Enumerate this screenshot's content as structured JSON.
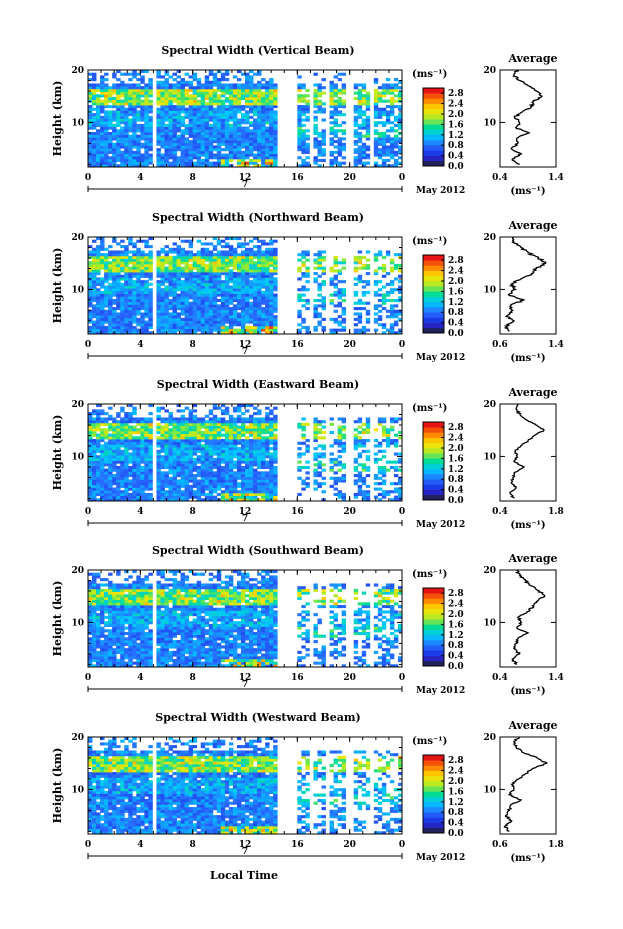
{
  "figure": {
    "xlabel": "Local Time",
    "date_label": "May 2012",
    "day_label": "7"
  },
  "chart_data": [
    {
      "type": "heatmap",
      "title": "Spectral Width (Vertical Beam)",
      "ylabel": "Height (km)",
      "x_ticks": [
        "0",
        "4",
        "8",
        "12",
        "16",
        "20",
        "0"
      ],
      "xlim": [
        0,
        24
      ],
      "y_ticks": [
        "10",
        "20"
      ],
      "ylim": [
        1.5,
        20
      ],
      "colorbar": {
        "unit": "(ms⁻¹)",
        "ticks": [
          "2.8",
          "2.4",
          "2.0",
          "1.6",
          "1.2",
          "0.8",
          "0.4",
          "0.0"
        ],
        "range": [
          0,
          3.0
        ]
      },
      "profile": {
        "title": "Average",
        "xlabel": "(ms⁻¹)",
        "x_ticks": [
          "0.4",
          "1.4"
        ],
        "xlim": [
          0.4,
          1.4
        ],
        "heights": [
          2,
          3,
          4,
          5,
          6,
          7,
          8,
          9,
          10,
          11,
          12,
          13,
          14,
          15,
          16,
          17,
          18,
          19,
          20
        ],
        "values": [
          0.75,
          0.62,
          0.78,
          0.6,
          0.72,
          0.7,
          0.92,
          0.68,
          0.75,
          0.66,
          0.8,
          0.95,
          1.0,
          1.15,
          1.05,
          0.9,
          0.75,
          0.65,
          0.7
        ]
      }
    },
    {
      "type": "heatmap",
      "title": "Spectral Width (Northward Beam)",
      "ylabel": "Height (km)",
      "x_ticks": [
        "0",
        "4",
        "8",
        "12",
        "16",
        "20",
        "0"
      ],
      "xlim": [
        0,
        24
      ],
      "y_ticks": [
        "10",
        "20"
      ],
      "ylim": [
        1.5,
        20
      ],
      "colorbar": {
        "unit": "(ms⁻¹)",
        "ticks": [
          "2.8",
          "2.4",
          "2.0",
          "1.6",
          "1.2",
          "0.8",
          "0.4",
          "0.0"
        ],
        "range": [
          0,
          3.0
        ]
      },
      "profile": {
        "title": "Average",
        "xlabel": "(ms⁻¹)",
        "x_ticks": [
          "0.6",
          "1.4"
        ],
        "xlim": [
          0.6,
          1.4
        ],
        "heights": [
          2,
          3,
          4,
          5,
          6,
          7,
          8,
          9,
          10,
          11,
          12,
          13,
          14,
          15,
          16,
          17,
          18,
          19,
          20
        ],
        "values": [
          0.72,
          0.68,
          0.8,
          0.7,
          0.78,
          0.75,
          0.95,
          0.72,
          0.82,
          0.76,
          0.9,
          1.05,
          1.12,
          1.25,
          1.15,
          1.0,
          0.9,
          0.78,
          0.8
        ]
      }
    },
    {
      "type": "heatmap",
      "title": "Spectral Width (Eastward Beam)",
      "ylabel": "Height (km)",
      "x_ticks": [
        "0",
        "4",
        "8",
        "12",
        "16",
        "20",
        "0"
      ],
      "xlim": [
        0,
        24
      ],
      "y_ticks": [
        "10",
        "20"
      ],
      "ylim": [
        1.5,
        20
      ],
      "colorbar": {
        "unit": "(ms⁻¹)",
        "ticks": [
          "2.8",
          "2.4",
          "2.0",
          "1.6",
          "1.2",
          "0.8",
          "0.4",
          "0.0"
        ],
        "range": [
          0,
          3.0
        ]
      },
      "profile": {
        "title": "Average",
        "xlabel": "(ms⁻¹)",
        "x_ticks": [
          "0.4",
          "1.8"
        ],
        "xlim": [
          0.4,
          1.8
        ],
        "heights": [
          2,
          3,
          4,
          5,
          6,
          7,
          8,
          9,
          10,
          11,
          12,
          13,
          14,
          15,
          16,
          17,
          18,
          19,
          20
        ],
        "values": [
          0.75,
          0.65,
          0.8,
          0.68,
          0.72,
          0.78,
          1.0,
          0.75,
          0.82,
          0.78,
          0.92,
          1.1,
          1.25,
          1.5,
          1.3,
          1.05,
          0.9,
          0.8,
          0.85
        ]
      }
    },
    {
      "type": "heatmap",
      "title": "Spectral Width (Southward Beam)",
      "ylabel": "Height (km)",
      "x_ticks": [
        "0",
        "4",
        "8",
        "12",
        "16",
        "20",
        "0"
      ],
      "xlim": [
        0,
        24
      ],
      "y_ticks": [
        "10",
        "20"
      ],
      "ylim": [
        1.5,
        20
      ],
      "colorbar": {
        "unit": "(ms⁻¹)",
        "ticks": [
          "2.8",
          "2.4",
          "2.0",
          "1.6",
          "1.2",
          "0.8",
          "0.4",
          "0.0"
        ],
        "range": [
          0,
          3.0
        ]
      },
      "profile": {
        "title": "Average",
        "xlabel": "(ms⁻¹)",
        "x_ticks": [
          "0.4",
          "1.4"
        ],
        "xlim": [
          0.4,
          1.4
        ],
        "heights": [
          2,
          3,
          4,
          5,
          6,
          7,
          8,
          9,
          10,
          11,
          12,
          13,
          14,
          15,
          16,
          17,
          18,
          19,
          20
        ],
        "values": [
          0.7,
          0.62,
          0.75,
          0.65,
          0.7,
          0.72,
          0.9,
          0.7,
          0.78,
          0.72,
          0.88,
          1.0,
          1.05,
          1.2,
          1.1,
          0.95,
          0.85,
          0.75,
          0.7
        ]
      }
    },
    {
      "type": "heatmap",
      "title": "Spectral Width (Westward Beam)",
      "ylabel": "Height (km)",
      "x_ticks": [
        "0",
        "4",
        "8",
        "12",
        "16",
        "20",
        "0"
      ],
      "xlim": [
        0,
        24
      ],
      "y_ticks": [
        "10",
        "20"
      ],
      "ylim": [
        1.5,
        20
      ],
      "colorbar": {
        "unit": "(ms⁻¹)",
        "ticks": [
          "2.8",
          "2.4",
          "2.0",
          "1.6",
          "1.2",
          "0.8",
          "0.4",
          "0.0"
        ],
        "range": [
          0,
          3.0
        ]
      },
      "profile": {
        "title": "Average",
        "xlabel": "(ms⁻¹)",
        "x_ticks": [
          "0.6",
          "1.8"
        ],
        "xlim": [
          0.6,
          1.8
        ],
        "heights": [
          2,
          3,
          4,
          5,
          6,
          7,
          8,
          9,
          10,
          11,
          12,
          13,
          14,
          15,
          16,
          17,
          18,
          19,
          20
        ],
        "values": [
          0.8,
          0.7,
          0.85,
          0.72,
          0.8,
          0.82,
          1.05,
          0.8,
          0.9,
          0.85,
          1.0,
          1.15,
          1.3,
          1.6,
          1.4,
          1.1,
          0.95,
          0.9,
          1.0
        ]
      }
    }
  ]
}
